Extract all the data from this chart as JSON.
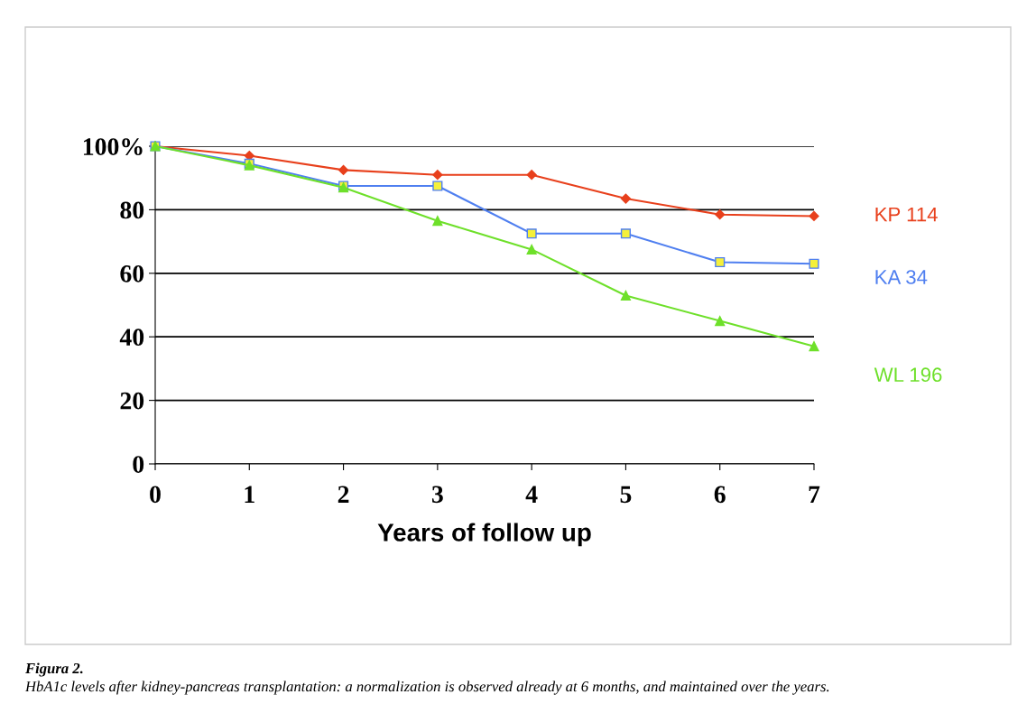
{
  "chart_data": {
    "type": "line",
    "xlabel": "Years of follow up",
    "x": [
      0,
      1,
      2,
      3,
      4,
      5,
      6,
      7
    ],
    "series": [
      {
        "name": "KP 114",
        "color": "#e8401c",
        "marker": "diamond",
        "values": [
          100,
          97,
          92.5,
          91,
          91,
          83.5,
          78.5,
          78
        ]
      },
      {
        "name": "KA 34",
        "color": "#4f7ff0",
        "marker": "square",
        "values": [
          100,
          94.5,
          87.5,
          87.5,
          72.5,
          72.5,
          63.5,
          63
        ]
      },
      {
        "name": "WL 196",
        "color": "#6ee02a",
        "marker": "triangle",
        "values": [
          100,
          94,
          87,
          76.5,
          67.5,
          53,
          45,
          37
        ]
      }
    ],
    "xlim": [
      0,
      7
    ],
    "xticks": [
      0,
      1,
      2,
      3,
      4,
      5,
      6,
      7
    ],
    "ylim": [
      0,
      100
    ],
    "yticks": [
      0,
      20,
      40,
      60,
      80,
      {
        "value": 100,
        "label": "100%"
      }
    ],
    "grid": "y",
    "annotations": [
      "Figura 2.",
      "HbA1c levels after kidney-pancreas transplantation: a normalization is observed already at 6 months, and maintained over the years."
    ]
  }
}
